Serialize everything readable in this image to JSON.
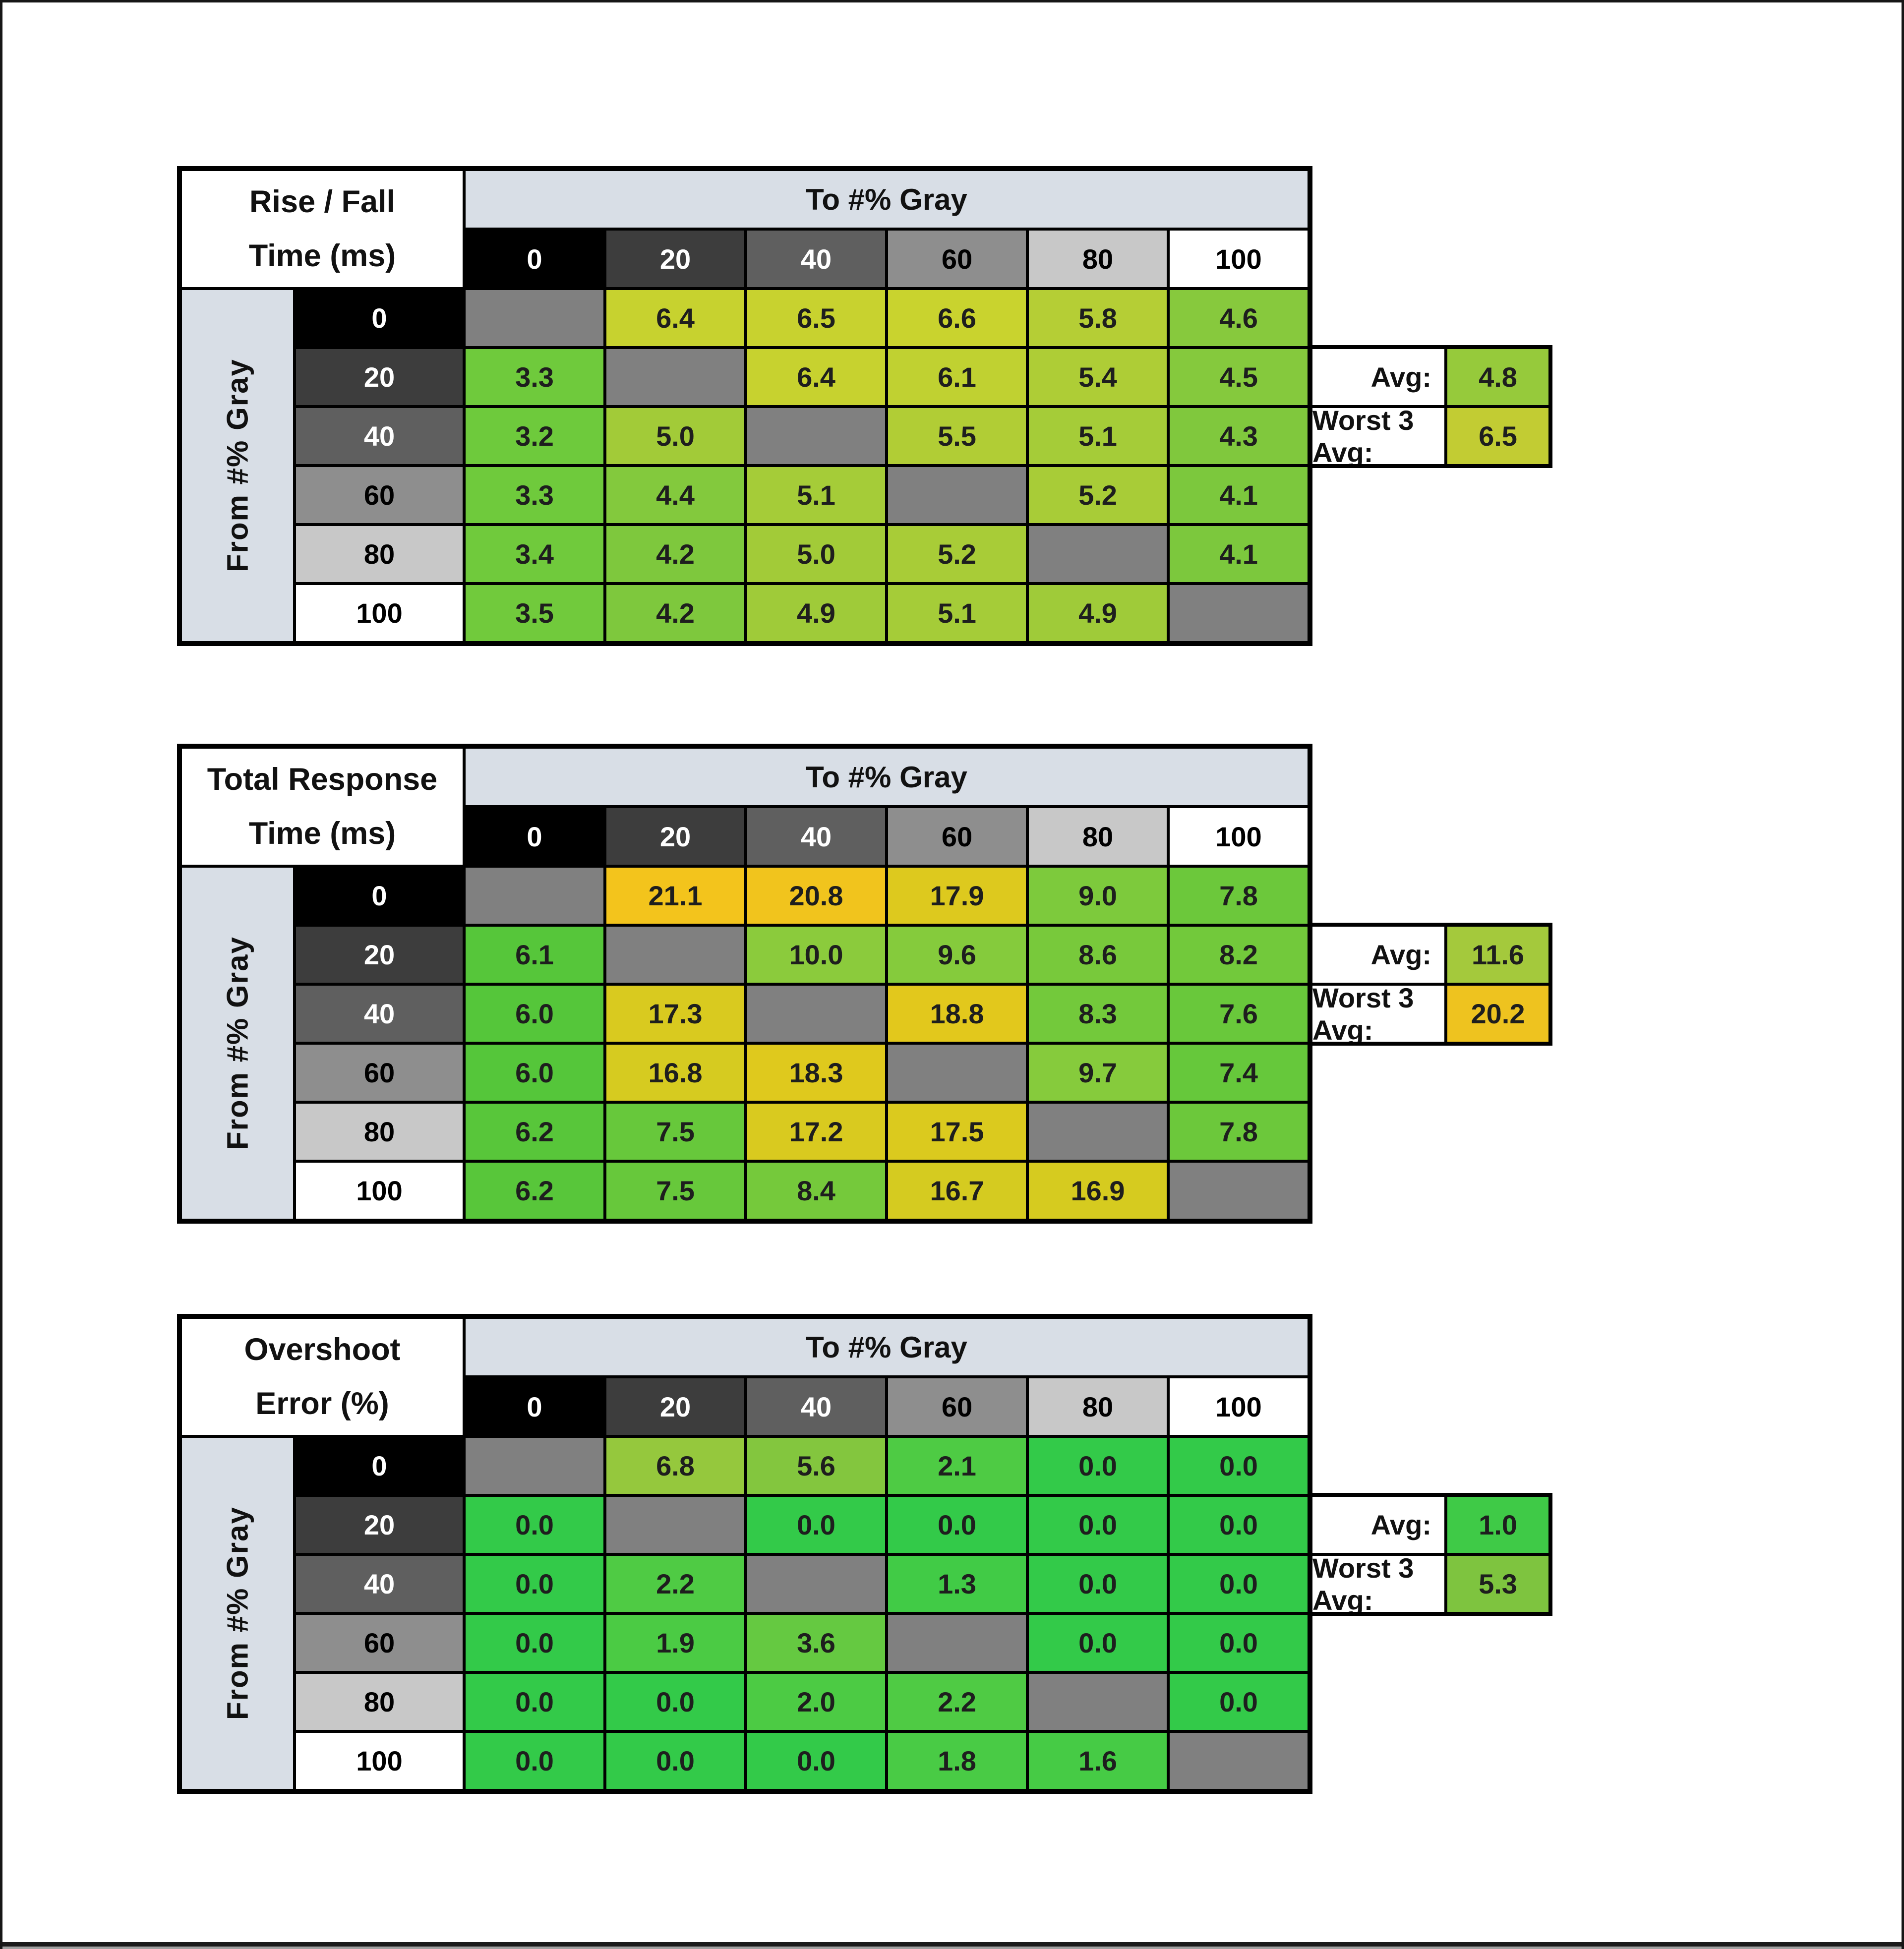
{
  "page": {
    "background": "#ffffff",
    "frame_color": "#161616",
    "bottom_strip_gray": "#a0a0a0"
  },
  "shared": {
    "diagonal_bg": "#808080",
    "band_bg": "#d8dee6",
    "avg_label": "Avg:",
    "worst_label": "Worst 3 Avg:"
  },
  "scale_headers": [
    {
      "label": "0",
      "bg": "#000000",
      "fg": "#ffffff"
    },
    {
      "label": "20",
      "bg": "#3d3d3d",
      "fg": "#ffffff"
    },
    {
      "label": "40",
      "bg": "#5f5f5f",
      "fg": "#ffffff"
    },
    {
      "label": "60",
      "bg": "#8e8e8e",
      "fg": "#000000"
    },
    {
      "label": "80",
      "bg": "#c8c8c8",
      "fg": "#000000"
    },
    {
      "label": "100",
      "bg": "#ffffff",
      "fg": "#000000"
    }
  ],
  "chart_data": [
    {
      "type": "heatmap",
      "title": "Rise / Fall Time (ms)",
      "title_lines": [
        "Rise / Fall",
        "Time (ms)"
      ],
      "xlabel": "To #% Gray",
      "ylabel": "From #% Gray",
      "x_ticks": [
        "0",
        "20",
        "40",
        "60",
        "80",
        "100"
      ],
      "y_ticks": [
        "0",
        "20",
        "40",
        "60",
        "80",
        "100"
      ],
      "values": [
        [
          null,
          "6.4",
          "6.5",
          "6.6",
          "5.8",
          "4.6"
        ],
        [
          "3.3",
          null,
          "6.4",
          "6.1",
          "5.4",
          "4.5"
        ],
        [
          "3.2",
          "5.0",
          null,
          "5.5",
          "5.1",
          "4.3"
        ],
        [
          "3.3",
          "4.4",
          "5.1",
          null,
          "5.2",
          "4.1"
        ],
        [
          "3.4",
          "4.2",
          "5.0",
          "5.2",
          null,
          "4.1"
        ],
        [
          "3.5",
          "4.2",
          "4.9",
          "5.1",
          "4.9",
          null
        ]
      ],
      "cell_colors": [
        [
          null,
          "#c7d22f",
          "#c8d22f",
          "#c9d32e",
          "#b5ce35",
          "#87c93d"
        ],
        [
          "#6fca3c",
          null,
          "#c7d22f",
          "#c0d131",
          "#aecd36",
          "#85c93d"
        ],
        [
          "#6eca3c",
          "#a2cb38",
          null,
          "#b1cd35",
          "#a5cc38",
          "#80c83d"
        ],
        [
          "#6fca3c",
          "#83c93d",
          "#a5cc38",
          null,
          "#a8cc37",
          "#7cc83d"
        ],
        [
          "#70ca3c",
          "#7ec83d",
          "#a2cb38",
          "#a8cc37",
          null,
          "#7cc83d"
        ],
        [
          "#71ca3c",
          "#7ec83d",
          "#9fcb39",
          "#a5cc38",
          "#9fcb39",
          null
        ]
      ],
      "annotations": {
        "avg": {
          "value": "4.8",
          "color": "#96ca3b"
        },
        "worst3": {
          "value": "6.5",
          "color": "#c2cc33"
        }
      }
    },
    {
      "type": "heatmap",
      "title": "Total Response Time (ms)",
      "title_lines": [
        "Total Response",
        "Time (ms)"
      ],
      "xlabel": "To #% Gray",
      "ylabel": "From #% Gray",
      "x_ticks": [
        "0",
        "20",
        "40",
        "60",
        "80",
        "100"
      ],
      "y_ticks": [
        "0",
        "20",
        "40",
        "60",
        "80",
        "100"
      ],
      "values": [
        [
          null,
          "21.1",
          "20.8",
          "17.9",
          "9.0",
          "7.8"
        ],
        [
          "6.1",
          null,
          "10.0",
          "9.6",
          "8.6",
          "8.2"
        ],
        [
          "6.0",
          "17.3",
          null,
          "18.8",
          "8.3",
          "7.6"
        ],
        [
          "6.0",
          "16.8",
          "18.3",
          null,
          "9.7",
          "7.4"
        ],
        [
          "6.2",
          "7.5",
          "17.2",
          "17.5",
          null,
          "7.8"
        ],
        [
          "6.2",
          "7.5",
          "8.4",
          "16.7",
          "16.9",
          null
        ]
      ],
      "cell_colors": [
        [
          null,
          "#f3c41c",
          "#f1c41d",
          "#ddc91e",
          "#7dca3c",
          "#6cc83b"
        ],
        [
          "#56c63a",
          null,
          "#8bcb3c",
          "#85cb3c",
          "#78c93b",
          "#72c93b"
        ],
        [
          "#55c63a",
          "#d9ca1f",
          null,
          "#e2c81c",
          "#73c93b",
          "#69c83b"
        ],
        [
          "#55c63a",
          "#d6cb20",
          "#dfc91d",
          null,
          "#86cb3c",
          "#66c83b"
        ],
        [
          "#58c63a",
          "#67c83b",
          "#d9ca1f",
          "#dbca1e",
          null,
          "#6cc83b"
        ],
        [
          "#58c63a",
          "#67c83b",
          "#75c93b",
          "#d5cb20",
          "#d6cb1f",
          null
        ]
      ],
      "annotations": {
        "avg": {
          "value": "11.6",
          "color": "#a4c93c"
        },
        "worst3": {
          "value": "20.2",
          "color": "#eec31f"
        }
      }
    },
    {
      "type": "heatmap",
      "title": "Overshoot Error (%)",
      "title_lines": [
        "Overshoot",
        "Error (%)"
      ],
      "xlabel": "To #% Gray",
      "ylabel": "From #% Gray",
      "x_ticks": [
        "0",
        "20",
        "40",
        "60",
        "80",
        "100"
      ],
      "y_ticks": [
        "0",
        "20",
        "40",
        "60",
        "80",
        "100"
      ],
      "values": [
        [
          null,
          "6.8",
          "5.6",
          "2.1",
          "0.0",
          "0.0"
        ],
        [
          "0.0",
          null,
          "0.0",
          "0.0",
          "0.0",
          "0.0"
        ],
        [
          "0.0",
          "2.2",
          null,
          "1.3",
          "0.0",
          "0.0"
        ],
        [
          "0.0",
          "1.9",
          "3.6",
          null,
          "0.0",
          "0.0"
        ],
        [
          "0.0",
          "0.0",
          "2.0",
          "2.2",
          null,
          "0.0"
        ],
        [
          "0.0",
          "0.0",
          "0.0",
          "1.8",
          "1.6",
          null
        ]
      ],
      "cell_colors": [
        [
          null,
          "#95c83d",
          "#83c63e",
          "#4ecb44",
          "#33ca49",
          "#33ca49"
        ],
        [
          "#33ca49",
          null,
          "#33ca49",
          "#33ca49",
          "#33ca49",
          "#33ca49"
        ],
        [
          "#33ca49",
          "#4fcb44",
          null,
          "#41cb46",
          "#33ca49",
          "#33ca49"
        ],
        [
          "#33ca49",
          "#4bcb44",
          "#65c941",
          null,
          "#33ca49",
          "#33ca49"
        ],
        [
          "#33ca49",
          "#33ca49",
          "#4ccb44",
          "#4fcb44",
          null,
          "#33ca49"
        ],
        [
          "#33ca49",
          "#33ca49",
          "#33ca49",
          "#49cb45",
          "#46cb45",
          null
        ]
      ],
      "annotations": {
        "avg": {
          "value": "1.0",
          "color": "#3fca47"
        },
        "worst3": {
          "value": "5.3",
          "color": "#7ec43f"
        }
      }
    }
  ]
}
